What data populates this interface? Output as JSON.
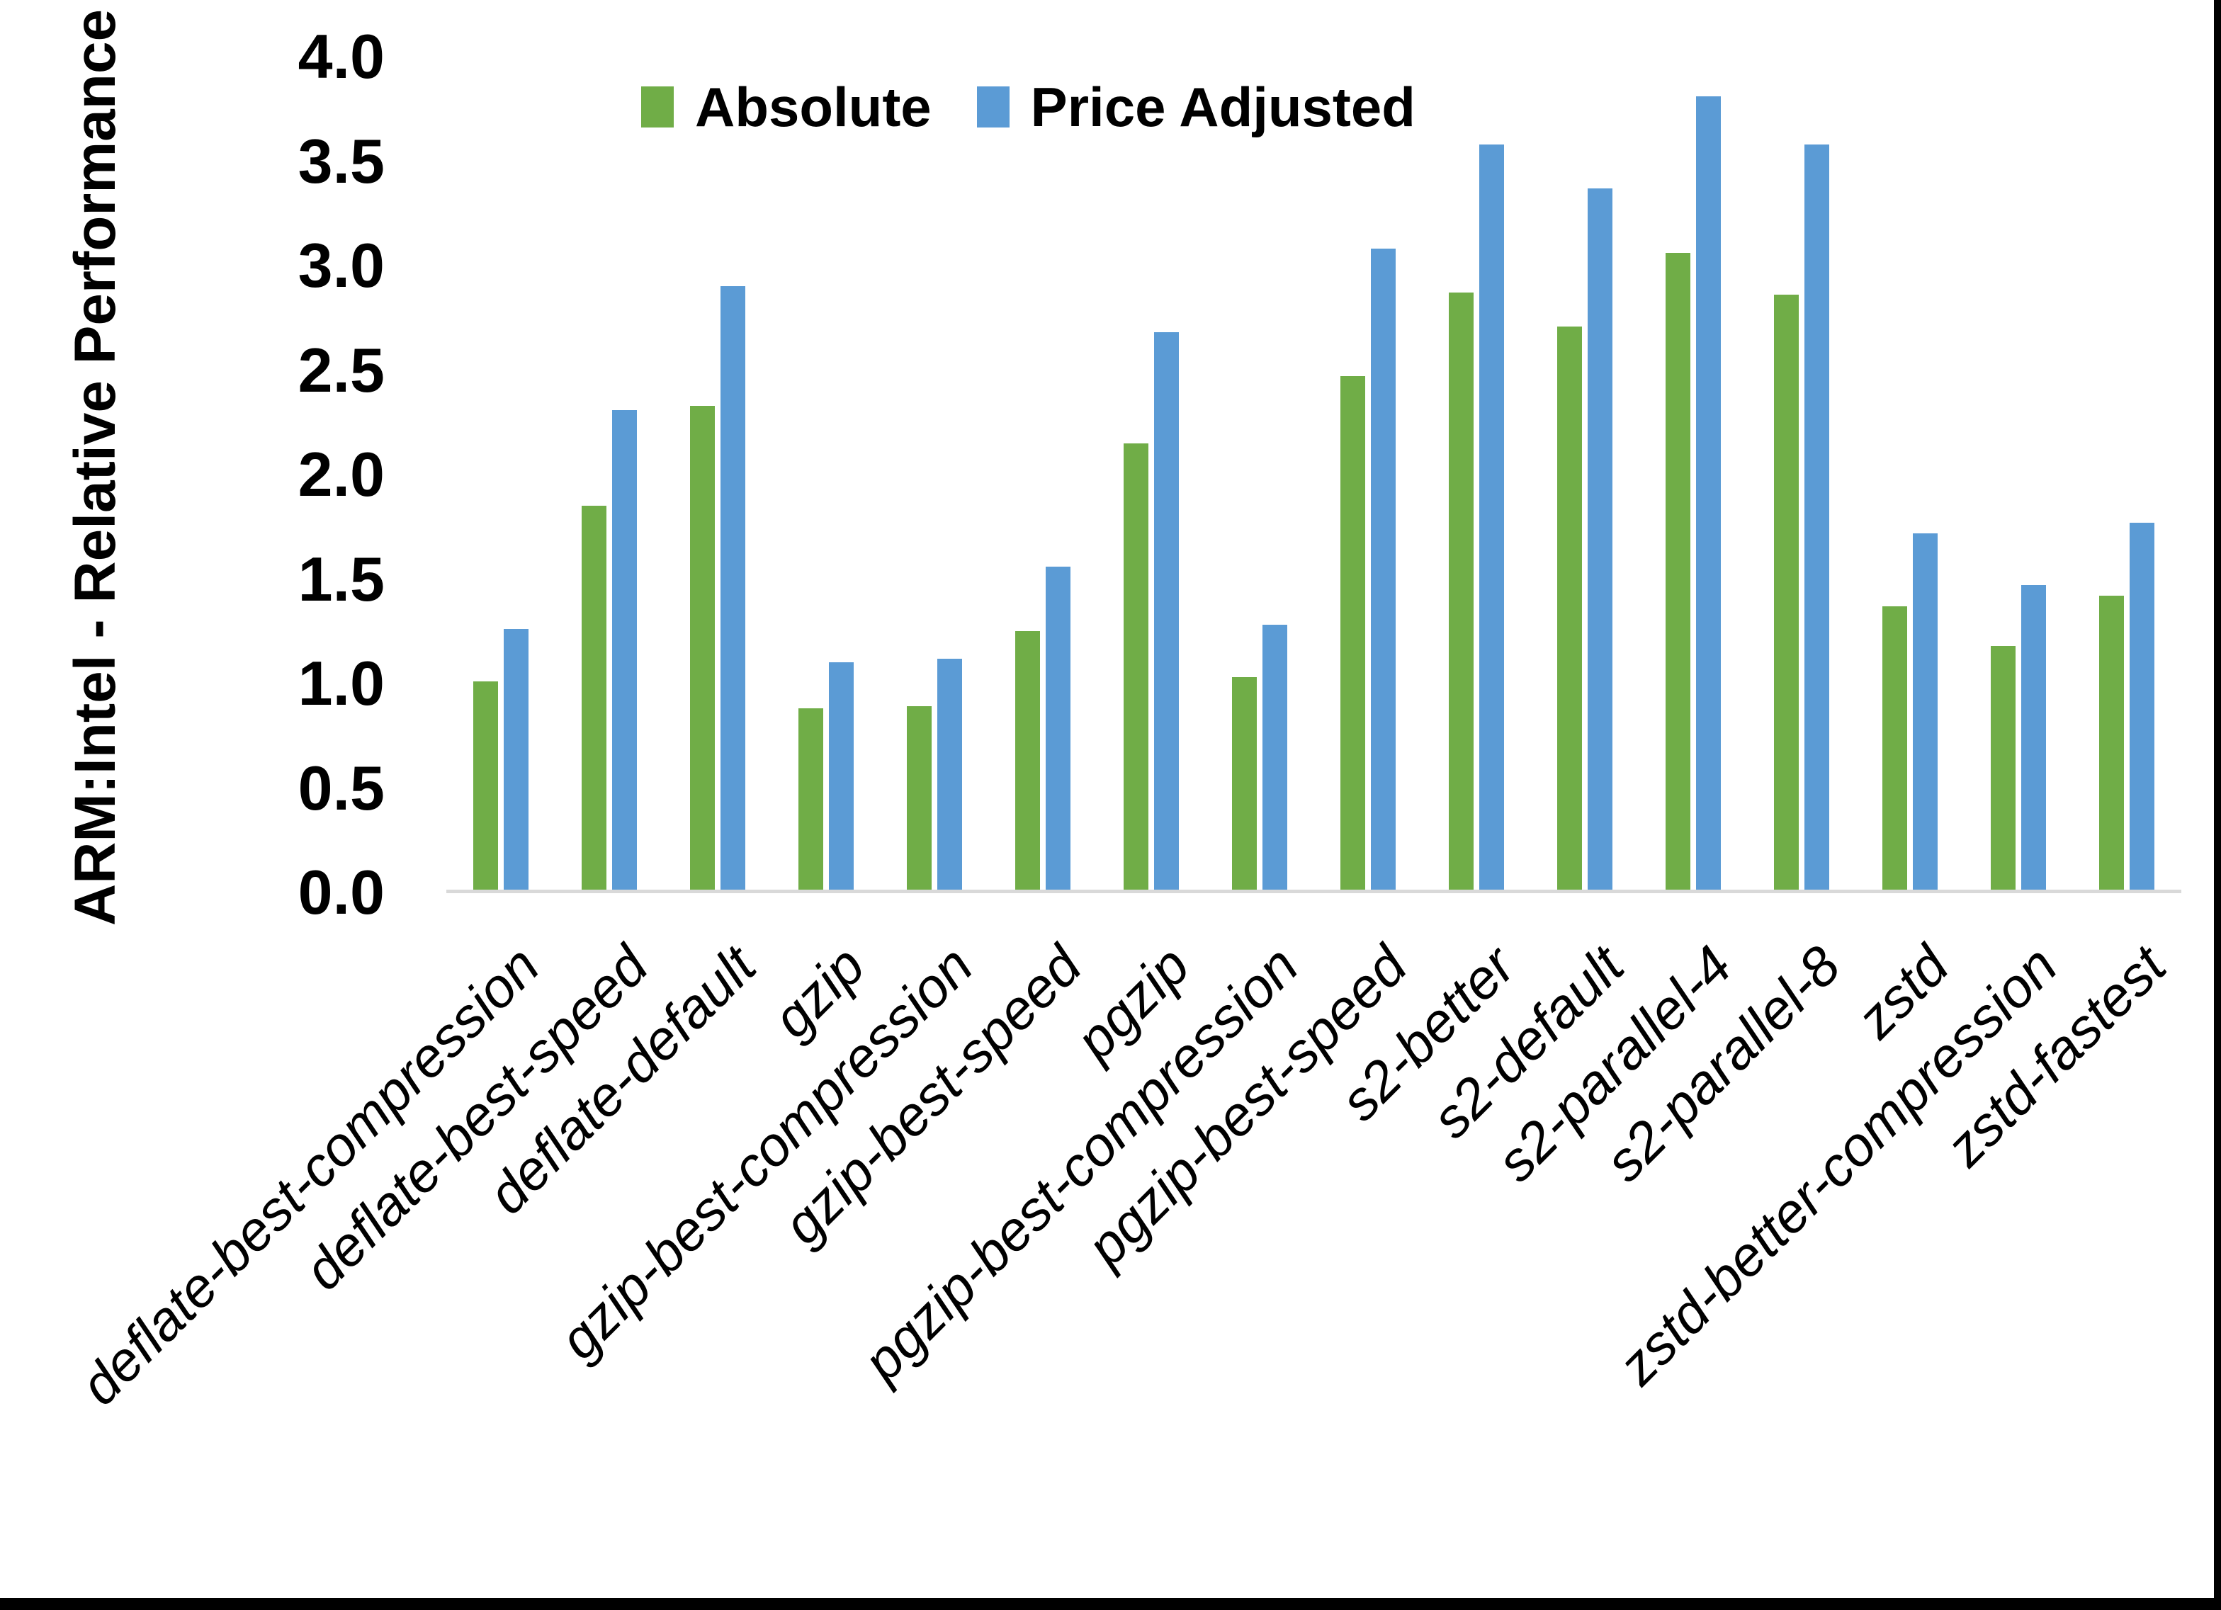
{
  "figure": {
    "background": "#ffffff",
    "frame_color": "#000000"
  },
  "y_axis": {
    "title": "ARM:Intel - Relative Performance",
    "tick_labels": [
      "4.0",
      "3.5",
      "3.0",
      "2.5",
      "2.0",
      "1.5",
      "1.0",
      "0.5",
      "0.0"
    ],
    "axis_line_color": "#d9d9d9"
  },
  "chart_data": {
    "type": "bar",
    "title": "",
    "xlabel": "",
    "ylabel": "ARM:Intel - Relative Performance",
    "ylim": [
      0.0,
      4.0
    ],
    "ytick_step": 0.5,
    "grid": false,
    "legend_position": "top-center",
    "categories": [
      "deflate-best-compression",
      "deflate-best-speed",
      "deflate-default",
      "gzip",
      "gzip-best-compression",
      "gzip-best-speed",
      "pgzip",
      "pgzip-best-compression",
      "pgzip-best-speed",
      "s2-better",
      "s2-default",
      "s2-parallel-4",
      "s2-parallel-8",
      "zstd",
      "zstd-better-compression",
      "zstd-fastest"
    ],
    "series": [
      {
        "name": "Absolute",
        "color": "#70AD47",
        "values": [
          1.01,
          1.85,
          2.33,
          0.88,
          0.89,
          1.25,
          2.15,
          1.03,
          2.47,
          2.87,
          2.71,
          3.06,
          2.86,
          1.37,
          1.18,
          1.42
        ]
      },
      {
        "name": "Price Adjusted",
        "color": "#5B9BD5",
        "values": [
          1.26,
          2.31,
          2.9,
          1.1,
          1.12,
          1.56,
          2.68,
          1.28,
          3.08,
          3.58,
          3.37,
          3.81,
          3.58,
          1.72,
          1.47,
          1.77
        ]
      }
    ]
  }
}
